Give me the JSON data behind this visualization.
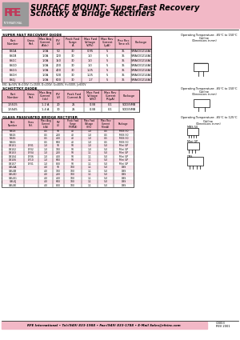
{
  "bg_color": "#ffffff",
  "pink_color": "#f2b8c6",
  "dark_pink": "#c0395a",
  "title_text1": "SURFACE MOUNT: Super Fast Recovery",
  "title_text2": "Schottky & Bridge Rectifiers",
  "footer_text": "RFE International • Tel:(949) 833-1988 • Fax:(949) 833-1788 • E-Mail Sales@rfeinc.com",
  "section1_title": "SUPER FAST RECOVERY DIODE",
  "section1_temp": "Operating Temperature: -65°C to 150°C",
  "section2_title": "SCHOTTKY DIODE",
  "section2_temp": "Operating Temperature: -65°C to 150°C",
  "section3_title": "GLASS PASSIVATED BRIDGE RECTIFIER",
  "section3_temp": "Operating Temperature: -65°C to 125°C",
  "diode_headers": [
    "Part\nNumber",
    "Cross\nRef.",
    "Max Avg\nCurrent\nA(dc)",
    "PIV\n(V)",
    "Peak Fwd\nSurge\nA",
    "Max Fwd\nVoltage\nV(Pk)",
    "Max Rev\nCurrent\nI(μA)",
    "Rev Rec\nTime nS",
    "Package"
  ],
  "diode_cols": [
    28,
    18,
    18,
    14,
    22,
    22,
    20,
    20,
    25
  ],
  "diode_data": [
    [
      "ES1A",
      "",
      "1.0A",
      "50",
      "30",
      "0.95",
      "5",
      "35",
      "SMA/DO214AC"
    ],
    [
      "ES1B",
      "",
      "1.0A",
      "100",
      "30",
      "1.0",
      "5",
      "35",
      "SMA/DO214AC"
    ],
    [
      "ES1C",
      "",
      "1.0A",
      "150",
      "30",
      "1.0",
      "5",
      "35",
      "SMA/DO214AC"
    ],
    [
      "ES1D",
      "",
      "1.0A",
      "200",
      "30",
      "1.0",
      "5",
      "35",
      "SMA/DO214AC"
    ],
    [
      "ES1G",
      "",
      "1.0A",
      "400",
      "30",
      "1.25",
      "5",
      "35",
      "SMA/DO214AC"
    ],
    [
      "ES1H",
      "",
      "1.0A",
      "500",
      "30",
      "1.25",
      "5",
      "35",
      "SMA/DO214AC"
    ],
    [
      "ES1J",
      "",
      "1.0A",
      "600",
      "30",
      "1.7",
      "5",
      "35",
      "SMA/DO214AC"
    ]
  ],
  "schottky_headers": [
    "Part\nNumber",
    "Cross\nRef.",
    "Max Avg\nCurrent\nI(dc)",
    "PIV\n(V)",
    "Peak Fwd\nCurrent A",
    "Max Fwd\nVoltage\nVf(V)",
    "Max Rev\nCurrent\nIR(μA)",
    "Package"
  ],
  "schottky_cols": [
    28,
    18,
    18,
    14,
    25,
    22,
    22,
    25
  ],
  "schottky_data": [
    [
      "1.5S15",
      "",
      "1-2 A",
      "20",
      "25",
      "0.38",
      "0.1",
      "SOD/SMB"
    ],
    [
      "1.5S45",
      "",
      "1-4 A",
      "30",
      "25",
      "0.38",
      "0.1",
      "SOD/SMB"
    ]
  ],
  "bridge_headers": [
    "Part\nNumber",
    "Cross\nRef.",
    "Max Avg\nCurrent\nIo(A)",
    "PIV\n(V)",
    "Peak Fwd\nSurge\nIPSM(A)",
    "Max Fwd\nVoltage\nVf(V)",
    "Max Rev\nCurrent\nIR(mA)",
    "Package"
  ],
  "bridge_cols": [
    28,
    18,
    18,
    14,
    22,
    20,
    20,
    25
  ],
  "bridge_data": [
    [
      "MB1S",
      "",
      "0.5",
      "50",
      "40",
      "1.0",
      "0.5",
      "MBS 50"
    ],
    [
      "MB2S",
      "",
      "0.5",
      "200",
      "40",
      "1.0",
      "0.5",
      "MBS 50"
    ],
    [
      "MB4S",
      "",
      "0.5",
      "400",
      "40",
      "1.0",
      "0.5",
      "MBS 50"
    ],
    [
      "MB6S",
      "",
      "0.5",
      "600",
      "40",
      "1.0",
      "0.5",
      "MBS 50"
    ],
    [
      "DB101",
      "DF01",
      "1.0",
      "50",
      "50",
      "1.0",
      "5.0",
      "Mini GP"
    ],
    [
      "DB102",
      "DF02",
      "1.0",
      "100",
      "50",
      "1.0",
      "5.0",
      "Mini GP"
    ],
    [
      "DB103",
      "DF04",
      "1.0",
      "200",
      "50",
      "1.1",
      "5.0",
      "Mini GP"
    ],
    [
      "DB104",
      "DF06",
      "1.0",
      "400",
      "50",
      "1.1",
      "5.0",
      "Mini GP"
    ],
    [
      "DB106",
      "DF10",
      "1.0",
      "600",
      "50",
      "1.1",
      "5.0",
      "Mini GP"
    ],
    [
      "DB107",
      "DF01",
      "1.0",
      "800",
      "50",
      "1.1",
      "5.0",
      "Mini GP"
    ],
    [
      "GBU4A",
      "",
      "4.0",
      "50",
      "100",
      "1.1",
      "5.0",
      "DBS"
    ],
    [
      "GBU4B",
      "",
      "4.0",
      "100",
      "100",
      "1.1",
      "5.0",
      "DBS"
    ],
    [
      "GBU4D",
      "",
      "4.0",
      "200",
      "100",
      "1.1",
      "5.0",
      "DBS"
    ],
    [
      "GBU4G",
      "",
      "4.0",
      "400",
      "100",
      "1.1",
      "5.0",
      "DBS"
    ],
    [
      "GBU4J",
      "",
      "4.0",
      "600",
      "100",
      "1.1",
      "5.0",
      "DBS"
    ],
    [
      "GBU4K",
      "",
      "4.0",
      "800",
      "100",
      "1.1",
      "5.0",
      "DBS"
    ]
  ]
}
